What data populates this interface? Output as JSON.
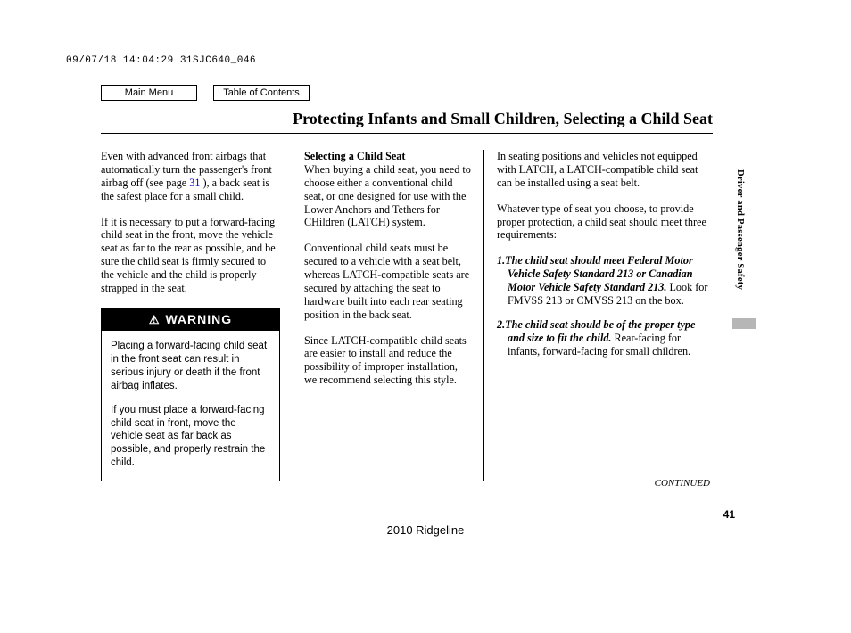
{
  "meta": {
    "stamp": "09/07/18 14:04:29 31SJC640_046",
    "model_year": "2010 Ridgeline",
    "page_number": "41",
    "continued": "CONTINUED",
    "side_tab": "Driver and Passenger Safety"
  },
  "nav": {
    "main_menu": "Main Menu",
    "toc": "Table of Contents"
  },
  "title": "Protecting Infants and Small Children, Selecting a Child Seat",
  "col1": {
    "p1_a": "Even with advanced front airbags that automatically turn the passenger's front airbag off (see page",
    "p1_link": " 31 ",
    "p1_b": "), a back seat is the safest place for a small child.",
    "p2": "If it is necessary to put a forward-facing child seat in the front, move the vehicle seat as far to the rear as possible, and be sure the child seat is firmly secured to the vehicle and the child is properly strapped in the seat."
  },
  "warning": {
    "header": "WARNING",
    "p1": "Placing a forward-facing child seat in the front seat can result in serious injury or death if the front airbag inflates.",
    "p2": "If you must place a forward-facing child seat in front, move the vehicle seat as far back as possible, and properly restrain the child."
  },
  "col2": {
    "heading": "Selecting a Child Seat",
    "p1": "When buying a child seat, you need to choose either a conventional child seat, or one designed for use with the Lower Anchors and Tethers for CHildren (LATCH) system.",
    "p2": "Conventional child seats must be secured to a vehicle with a seat belt, whereas LATCH-compatible seats are secured by attaching the seat to hardware built into each rear seating position in the back seat.",
    "p3": "Since LATCH-compatible child seats are easier to install and reduce the possibility of improper installation, we recommend selecting this style."
  },
  "col3": {
    "p1": "In seating positions and vehicles not equipped with LATCH, a LATCH-compatible child seat can be installed using a seat belt.",
    "p2": "Whatever type of seat you choose, to provide proper protection, a child seat should meet three requirements:",
    "req1_num": "1.",
    "req1_bold": "The child seat should meet Federal Motor Vehicle Safety Standard 213 or Canadian Motor Vehicle Safety Standard 213.",
    "req1_rest": " Look for FMVSS 213 or CMVSS 213 on the box.",
    "req2_num": "2.",
    "req2_bold": "The child seat should be of the proper type and size to fit the child.",
    "req2_rest": " Rear-facing for infants, forward-facing for small children."
  }
}
